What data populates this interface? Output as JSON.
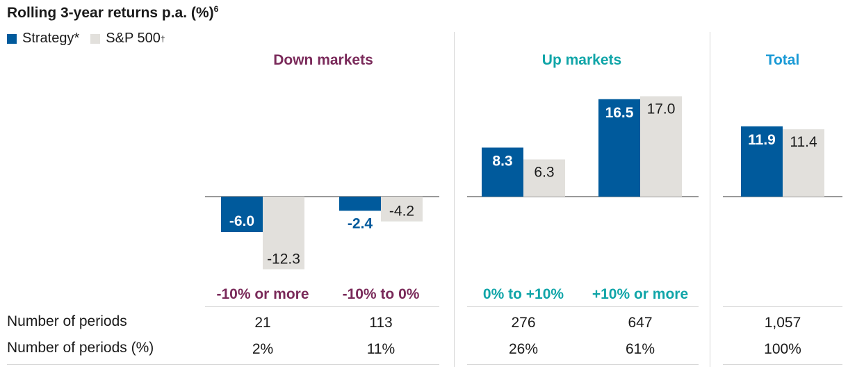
{
  "title": "Rolling 3-year returns p.a. (%)",
  "title_sup": "6",
  "legend": [
    {
      "label": "Strategy",
      "mark": "*",
      "color": "#005a9c"
    },
    {
      "label": "S&P 500",
      "mark": "†",
      "color": "#e2e0dc"
    }
  ],
  "colors": {
    "down": "#7a2a5a",
    "up": "#10a5a8",
    "total": "#1a9ad6",
    "strategy": "#005a9c",
    "sp500": "#e2e0dc"
  },
  "chart_data": {
    "type": "bar",
    "title": "Rolling 3-year returns p.a. (%)",
    "series": [
      {
        "name": "Strategy",
        "values": [
          -6.0,
          -2.4,
          8.3,
          16.5,
          11.9
        ]
      },
      {
        "name": "S&P 500",
        "values": [
          -12.3,
          -4.2,
          6.3,
          17.0,
          11.4
        ]
      }
    ],
    "categories": [
      "-10% or more",
      "-10% to 0%",
      "0% to +10%",
      "+10% or more",
      "Total"
    ],
    "groups": [
      {
        "label": "Down markets",
        "categories": [
          "-10% or more",
          "-10% to 0%"
        ]
      },
      {
        "label": "Up markets",
        "categories": [
          "0% to +10%",
          "+10% or more"
        ]
      },
      {
        "label": "Total",
        "categories": [
          "Total"
        ]
      }
    ],
    "value_labels": {
      "Strategy": [
        "-6.0",
        "-2.4",
        "8.3",
        "16.5",
        "11.9"
      ],
      "S&P 500": [
        "-12.3",
        "-4.2",
        "6.3",
        "17.0",
        "11.4"
      ]
    }
  },
  "table": {
    "rows": [
      {
        "label": "Number of periods",
        "values": [
          "21",
          "113",
          "276",
          "647",
          "1,057"
        ]
      },
      {
        "label": "Number of periods (%)",
        "values": [
          "2%",
          "11%",
          "26%",
          "61%",
          "100%"
        ]
      }
    ]
  }
}
